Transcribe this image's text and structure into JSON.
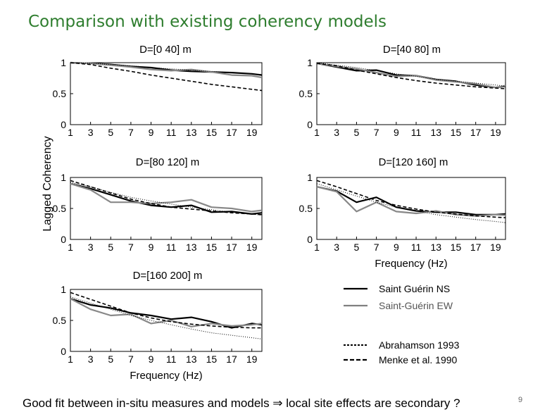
{
  "slide": {
    "title": "Comparison with existing coherency models",
    "caption": "Good fit between in-situ measures and models ⇒ local site effects are secondary ?",
    "page_number": "9"
  },
  "legend": [
    {
      "label": "Saint Guérin NS",
      "color": "#000000",
      "dash": "solid"
    },
    {
      "label": "Saint-Guérin EW",
      "color": "#808080",
      "dash": "solid"
    },
    {
      "label": "Abrahamson 1993",
      "color": "#000000",
      "dash": "dotted"
    },
    {
      "label": "Menke et al. 1990",
      "color": "#000000",
      "dash": "dashed"
    }
  ],
  "chart_data": [
    {
      "type": "line",
      "title": "D=[0 40] m",
      "xlabel": "",
      "ylabel": "",
      "xlim": [
        1,
        20
      ],
      "ylim": [
        0,
        1
      ],
      "xticks": [
        "1",
        "3",
        "5",
        "7",
        "9",
        "11",
        "13",
        "15",
        "17",
        "19"
      ],
      "yticks": [
        "0",
        "0.5",
        "1"
      ],
      "x": [
        1,
        3,
        5,
        7,
        9,
        11,
        13,
        15,
        17,
        19,
        20
      ],
      "series": [
        {
          "name": "Saint Guérin NS",
          "values": [
            1.0,
            0.99,
            0.97,
            0.94,
            0.92,
            0.88,
            0.86,
            0.85,
            0.84,
            0.82,
            0.8
          ]
        },
        {
          "name": "Saint-Guérin EW",
          "values": [
            1.0,
            0.99,
            0.96,
            0.93,
            0.89,
            0.87,
            0.89,
            0.85,
            0.8,
            0.79,
            0.76
          ]
        },
        {
          "name": "Abrahamson 1993",
          "values": [
            1.0,
            0.99,
            0.97,
            0.95,
            0.92,
            0.9,
            0.88,
            0.86,
            0.84,
            0.82,
            0.81
          ]
        },
        {
          "name": "Menke et al. 1990",
          "values": [
            1.0,
            0.97,
            0.91,
            0.86,
            0.8,
            0.75,
            0.7,
            0.65,
            0.61,
            0.57,
            0.55
          ]
        }
      ]
    },
    {
      "type": "line",
      "title": "D=[40 80] m",
      "xlabel": "",
      "ylabel": "",
      "xlim": [
        1,
        20
      ],
      "ylim": [
        0,
        1
      ],
      "xticks": [
        "1",
        "3",
        "5",
        "7",
        "9",
        "11",
        "13",
        "15",
        "17",
        "19"
      ],
      "yticks": [
        "0",
        "0.5",
        "1"
      ],
      "x": [
        1,
        3,
        5,
        7,
        9,
        11,
        13,
        15,
        17,
        19,
        20
      ],
      "series": [
        {
          "name": "Saint Guérin NS",
          "values": [
            0.99,
            0.93,
            0.87,
            0.88,
            0.8,
            0.79,
            0.73,
            0.7,
            0.64,
            0.6,
            0.62
          ]
        },
        {
          "name": "Saint-Guérin EW",
          "values": [
            0.99,
            0.94,
            0.9,
            0.84,
            0.78,
            0.79,
            0.72,
            0.69,
            0.66,
            0.6,
            0.63
          ]
        },
        {
          "name": "Abrahamson 1993",
          "values": [
            1.0,
            0.96,
            0.92,
            0.87,
            0.82,
            0.78,
            0.73,
            0.7,
            0.67,
            0.64,
            0.62
          ]
        },
        {
          "name": "Menke et al. 1990",
          "values": [
            0.99,
            0.95,
            0.88,
            0.82,
            0.76,
            0.71,
            0.67,
            0.64,
            0.61,
            0.59,
            0.58
          ]
        }
      ]
    },
    {
      "type": "line",
      "title": "D=[80 120] m",
      "xlabel": "",
      "ylabel": "Lagged Coherency",
      "xlim": [
        1,
        20
      ],
      "ylim": [
        0,
        1
      ],
      "xticks": [
        "1",
        "3",
        "5",
        "7",
        "9",
        "11",
        "13",
        "15",
        "17",
        "19"
      ],
      "yticks": [
        "0",
        "0.5",
        "1"
      ],
      "x": [
        1,
        3,
        5,
        7,
        9,
        11,
        13,
        15,
        17,
        19,
        20
      ],
      "series": [
        {
          "name": "Saint Guérin NS",
          "values": [
            0.9,
            0.82,
            0.72,
            0.62,
            0.55,
            0.52,
            0.55,
            0.44,
            0.45,
            0.41,
            0.43
          ]
        },
        {
          "name": "Saint-Guérin EW",
          "values": [
            0.9,
            0.8,
            0.6,
            0.6,
            0.58,
            0.6,
            0.64,
            0.52,
            0.5,
            0.45,
            0.47
          ]
        },
        {
          "name": "Abrahamson 1993",
          "values": [
            0.92,
            0.85,
            0.76,
            0.68,
            0.62,
            0.57,
            0.52,
            0.48,
            0.44,
            0.41,
            0.39
          ]
        },
        {
          "name": "Menke et al. 1990",
          "values": [
            0.95,
            0.85,
            0.75,
            0.65,
            0.58,
            0.52,
            0.49,
            0.46,
            0.43,
            0.41,
            0.4
          ]
        }
      ]
    },
    {
      "type": "line",
      "title": "D=[120 160] m",
      "xlabel": "Frequency (Hz)",
      "ylabel": "",
      "xlim": [
        1,
        20
      ],
      "ylim": [
        0,
        1
      ],
      "xticks": [
        "1",
        "3",
        "5",
        "7",
        "9",
        "11",
        "13",
        "15",
        "17",
        "19"
      ],
      "yticks": [
        "0",
        "0.5",
        "1"
      ],
      "x": [
        1,
        3,
        5,
        7,
        9,
        11,
        13,
        15,
        17,
        19,
        20
      ],
      "series": [
        {
          "name": "Saint Guérin NS",
          "values": [
            0.85,
            0.78,
            0.6,
            0.68,
            0.52,
            0.46,
            0.44,
            0.44,
            0.4,
            0.4,
            0.41
          ]
        },
        {
          "name": "Saint-Guérin EW",
          "values": [
            0.85,
            0.77,
            0.45,
            0.6,
            0.45,
            0.42,
            0.46,
            0.4,
            0.38,
            0.4,
            0.39
          ]
        },
        {
          "name": "Abrahamson 1993",
          "values": [
            0.9,
            0.8,
            0.7,
            0.6,
            0.52,
            0.46,
            0.4,
            0.36,
            0.32,
            0.29,
            0.27
          ]
        },
        {
          "name": "Menke et al. 1990",
          "values": [
            0.95,
            0.85,
            0.74,
            0.63,
            0.55,
            0.49,
            0.44,
            0.41,
            0.38,
            0.36,
            0.35
          ]
        }
      ]
    },
    {
      "type": "line",
      "title": "D=[160 200] m",
      "xlabel": "Frequency (Hz)",
      "ylabel": "",
      "xlim": [
        1,
        20
      ],
      "ylim": [
        0,
        1
      ],
      "xticks": [
        "1",
        "3",
        "5",
        "7",
        "9",
        "11",
        "13",
        "15",
        "17",
        "19"
      ],
      "yticks": [
        "0",
        "0.5",
        "1"
      ],
      "x": [
        1,
        3,
        5,
        7,
        9,
        11,
        13,
        15,
        17,
        19,
        20
      ],
      "series": [
        {
          "name": "Saint Guérin NS",
          "values": [
            0.85,
            0.75,
            0.7,
            0.62,
            0.58,
            0.52,
            0.55,
            0.48,
            0.38,
            0.45,
            0.43
          ]
        },
        {
          "name": "Saint-Guérin EW",
          "values": [
            0.85,
            0.68,
            0.58,
            0.6,
            0.45,
            0.5,
            0.4,
            0.45,
            0.41,
            0.43,
            0.45
          ]
        },
        {
          "name": "Abrahamson 1993",
          "values": [
            0.88,
            0.78,
            0.68,
            0.58,
            0.5,
            0.43,
            0.36,
            0.3,
            0.26,
            0.22,
            0.2
          ]
        },
        {
          "name": "Menke et al. 1990",
          "values": [
            0.95,
            0.84,
            0.73,
            0.62,
            0.54,
            0.48,
            0.44,
            0.41,
            0.39,
            0.38,
            0.38
          ]
        }
      ]
    }
  ]
}
